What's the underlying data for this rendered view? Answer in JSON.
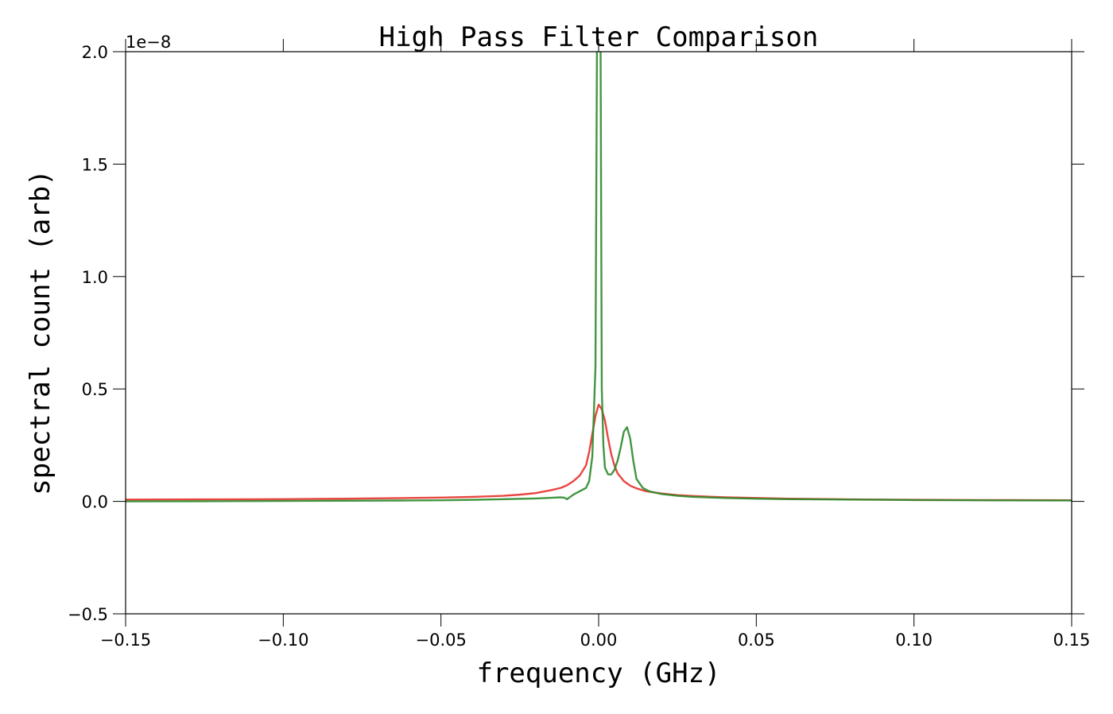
{
  "chart_data": {
    "type": "line",
    "title": "High Pass Filter Comparison",
    "xlabel": "frequency (GHz)",
    "ylabel": "spectral count (arb)",
    "y_offset_label": "1e−8",
    "xlim": [
      -0.15,
      0.15
    ],
    "ylim": [
      -0.5,
      2.0
    ],
    "x_ticks": [
      -0.15,
      -0.1,
      -0.05,
      0.0,
      0.05,
      0.1,
      0.15
    ],
    "x_tick_labels": [
      "−0.15",
      "−0.10",
      "−0.05",
      "0.00",
      "0.05",
      "0.10",
      "0.15"
    ],
    "y_ticks": [
      -0.5,
      0.0,
      0.5,
      1.0,
      1.5,
      2.0
    ],
    "y_tick_labels": [
      "−0.5",
      "0.0",
      "0.5",
      "1.0",
      "1.5",
      "2.0"
    ],
    "grid": false,
    "series": [
      {
        "color": "#e8312b",
        "x": [
          -0.15,
          -0.12,
          -0.1,
          -0.08,
          -0.06,
          -0.05,
          -0.04,
          -0.03,
          -0.025,
          -0.02,
          -0.015,
          -0.012,
          -0.01,
          -0.008,
          -0.006,
          -0.004,
          -0.003,
          -0.002,
          -0.001,
          0.0,
          0.001,
          0.002,
          0.003,
          0.004,
          0.005,
          0.006,
          0.008,
          0.01,
          0.012,
          0.015,
          0.02,
          0.025,
          0.03,
          0.04,
          0.05,
          0.06,
          0.08,
          0.1,
          0.12,
          0.15
        ],
        "y": [
          0.008,
          0.009,
          0.01,
          0.012,
          0.015,
          0.017,
          0.02,
          0.025,
          0.03,
          0.037,
          0.05,
          0.06,
          0.072,
          0.09,
          0.115,
          0.16,
          0.22,
          0.3,
          0.38,
          0.43,
          0.41,
          0.36,
          0.28,
          0.21,
          0.16,
          0.125,
          0.09,
          0.07,
          0.058,
          0.045,
          0.035,
          0.028,
          0.024,
          0.018,
          0.015,
          0.012,
          0.009,
          0.007,
          0.006,
          0.005
        ]
      },
      {
        "color": "#2e8b2e",
        "x": [
          -0.15,
          -0.12,
          -0.1,
          -0.08,
          -0.06,
          -0.05,
          -0.04,
          -0.03,
          -0.02,
          -0.015,
          -0.012,
          -0.011,
          -0.01,
          -0.009,
          -0.008,
          -0.006,
          -0.004,
          -0.003,
          -0.002,
          -0.001,
          -0.0005,
          -0.0003,
          0.0,
          0.0003,
          0.0006,
          0.001,
          0.0015,
          0.002,
          0.003,
          0.004,
          0.005,
          0.006,
          0.007,
          0.008,
          0.009,
          0.01,
          0.011,
          0.012,
          0.014,
          0.016,
          0.02,
          0.025,
          0.03,
          0.04,
          0.05,
          0.06,
          0.08,
          0.1,
          0.12,
          0.15
        ],
        "y": [
          0.0,
          0.001,
          0.002,
          0.003,
          0.004,
          0.005,
          0.007,
          0.01,
          0.013,
          0.016,
          0.018,
          0.017,
          0.01,
          0.02,
          0.03,
          0.045,
          0.06,
          0.09,
          0.2,
          0.6,
          2.1,
          2.1,
          2.1,
          2.1,
          2.1,
          0.5,
          0.25,
          0.15,
          0.12,
          0.12,
          0.14,
          0.18,
          0.24,
          0.31,
          0.33,
          0.28,
          0.18,
          0.1,
          0.06,
          0.045,
          0.033,
          0.025,
          0.02,
          0.015,
          0.012,
          0.01,
          0.008,
          0.006,
          0.005,
          0.004
        ]
      }
    ]
  }
}
